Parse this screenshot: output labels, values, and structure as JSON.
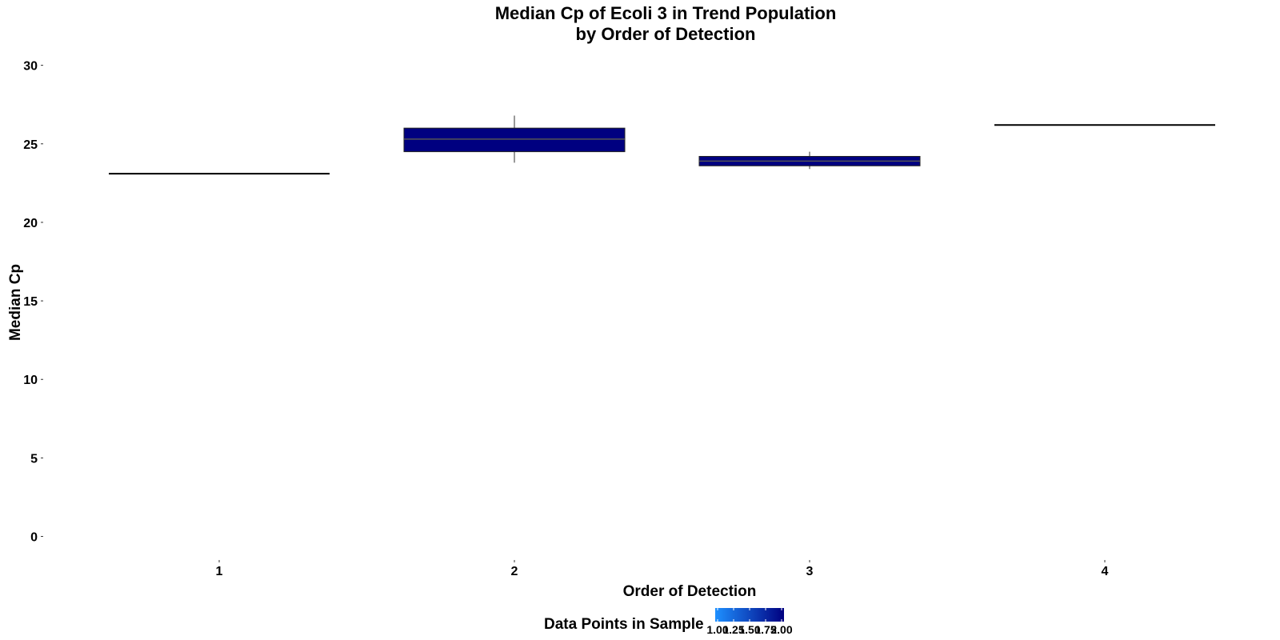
{
  "chart_data": {
    "type": "box",
    "title": [
      "Median Cp of Ecoli 3 in Trend Population",
      "by Order of Detection"
    ],
    "xlabel": "Order of Detection",
    "ylabel": "Median Cp",
    "categories": [
      "1",
      "2",
      "3",
      "4"
    ],
    "y_ticks": [
      0,
      5,
      10,
      15,
      20,
      25,
      30
    ],
    "ylim": [
      -1.5,
      31
    ],
    "grid": false,
    "boxes": [
      {
        "category": "1",
        "lower_whisker": 23.1,
        "q1": 23.1,
        "median": 23.1,
        "q3": 23.1,
        "upper_whisker": 23.1,
        "data_points": 1
      },
      {
        "category": "2",
        "lower_whisker": 23.8,
        "q1": 24.5,
        "median": 25.3,
        "q3": 26.0,
        "upper_whisker": 26.8,
        "data_points": 2
      },
      {
        "category": "3",
        "lower_whisker": 23.4,
        "q1": 23.6,
        "median": 23.9,
        "q3": 24.2,
        "upper_whisker": 24.5,
        "data_points": 2
      },
      {
        "category": "4",
        "lower_whisker": 26.2,
        "q1": 26.2,
        "median": 26.2,
        "q3": 26.2,
        "upper_whisker": 26.2,
        "data_points": 1
      }
    ],
    "legend": {
      "title": "Data Points in Sample",
      "position": "bottom",
      "ticks": [
        "1.00",
        "1.25",
        "1.50",
        "1.75",
        "2.00"
      ],
      "low_color": "#1E90FF",
      "high_color": "#000080"
    },
    "median_line_color": "#555555",
    "whisker_color": "#333333"
  }
}
